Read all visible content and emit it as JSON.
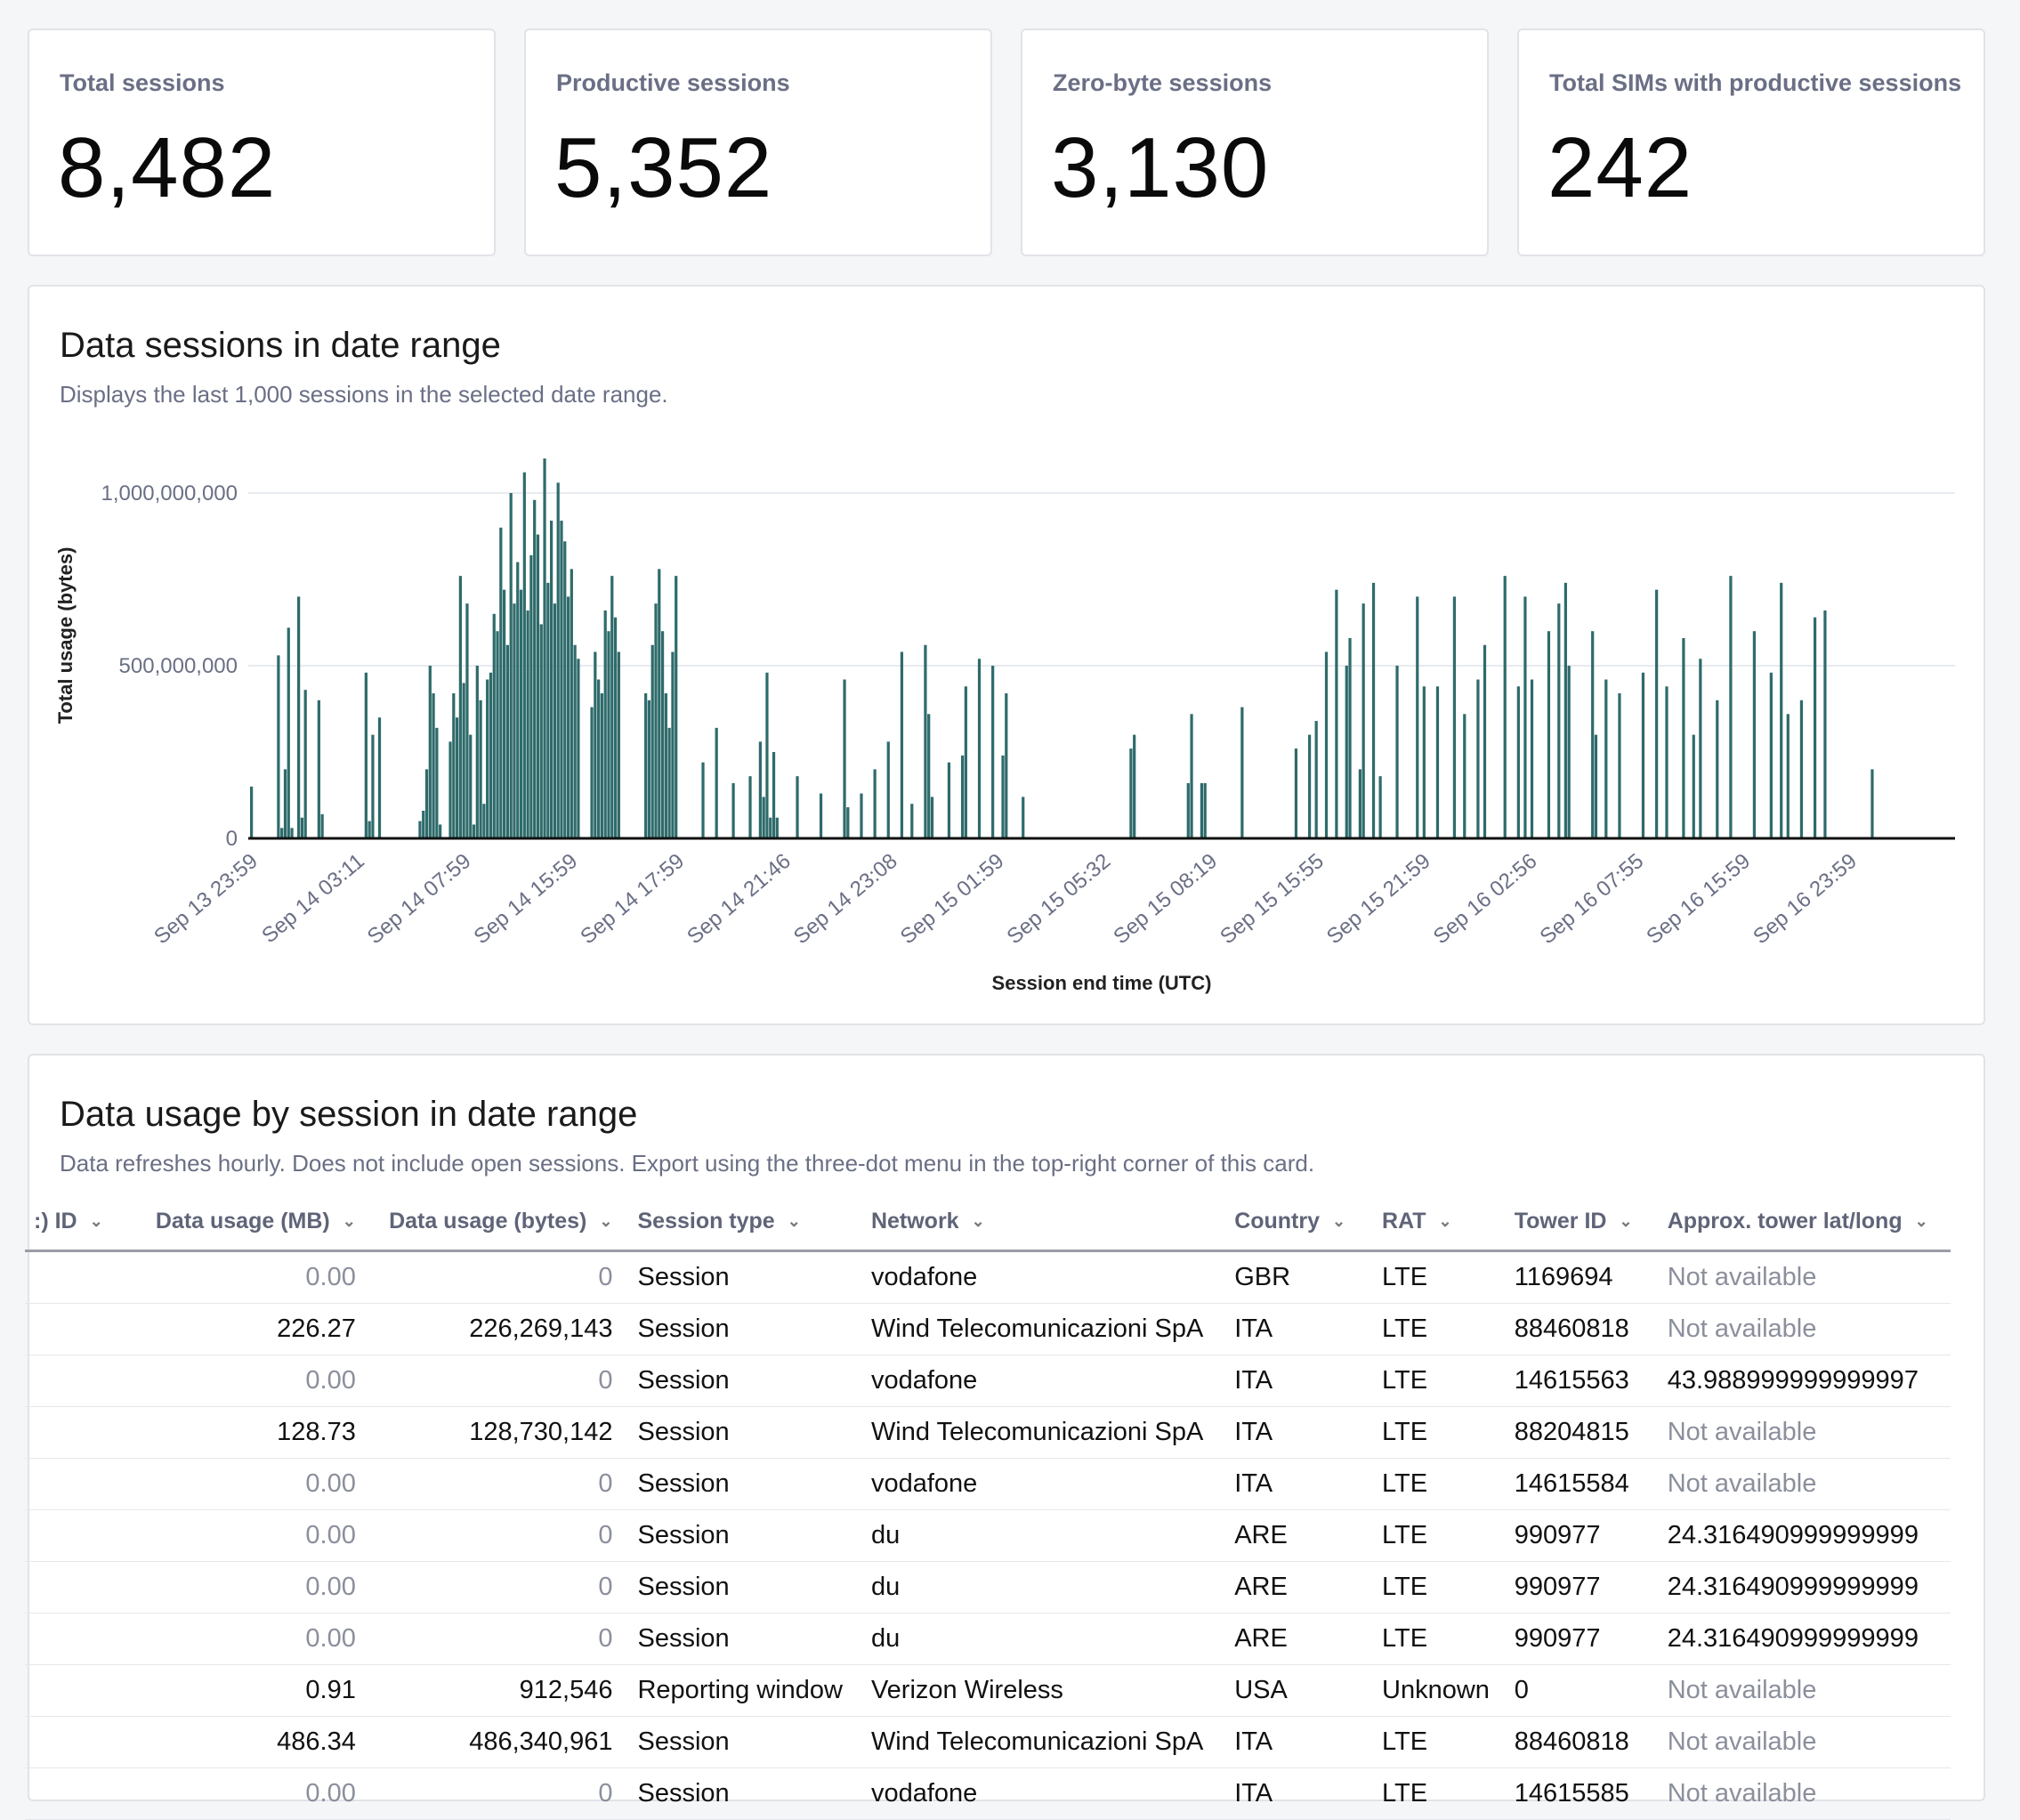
{
  "stats": [
    {
      "label": "Total sessions",
      "value": "8,482"
    },
    {
      "label": "Productive sessions",
      "value": "5,352"
    },
    {
      "label": "Zero-byte sessions",
      "value": "3,130"
    },
    {
      "label": "Total SIMs with productive sessions",
      "value": "242"
    }
  ],
  "sessions_chart": {
    "title": "Data sessions in date range",
    "subtitle": "Displays the last 1,000 sessions in the selected date range."
  },
  "chart_data": {
    "type": "bar",
    "xlabel": "Session end time (UTC)",
    "ylabel": "Total usage (bytes)",
    "ylim": [
      0,
      1170000000
    ],
    "yticks": [
      "0",
      "500,000,000",
      "1,000,000,000"
    ],
    "ytick_values": [
      0,
      500000000,
      1000000000
    ],
    "xticks": [
      "Sep 13 23:59",
      "Sep 14 03:11",
      "Sep 14 07:59",
      "Sep 14 15:59",
      "Sep 14 17:59",
      "Sep 14 21:46",
      "Sep 14 23:08",
      "Sep 15 01:59",
      "Sep 15 05:32",
      "Sep 15 08:19",
      "Sep 15 15:55",
      "Sep 15 21:59",
      "Sep 16 02:56",
      "Sep 16 07:55",
      "Sep 16 15:59",
      "Sep 16 23:59"
    ],
    "grid": true,
    "bar_color": "#2f6b6b",
    "series": [
      {
        "values": [
          150000000,
          0,
          0,
          0,
          0,
          0,
          0,
          0,
          530000000,
          30000000,
          200000000,
          610000000,
          30000000,
          0,
          700000000,
          60000000,
          430000000,
          0,
          0,
          0,
          400000000,
          70000000,
          0,
          0,
          0,
          0,
          0,
          0,
          0,
          0,
          0,
          0,
          0,
          0,
          480000000,
          50000000,
          300000000,
          0,
          350000000,
          0,
          0,
          0,
          0,
          0,
          0,
          0,
          0,
          0,
          0,
          0,
          50000000,
          80000000,
          200000000,
          500000000,
          420000000,
          320000000,
          40000000,
          0,
          0,
          280000000,
          420000000,
          350000000,
          760000000,
          450000000,
          680000000,
          300000000,
          40000000,
          500000000,
          400000000,
          100000000,
          460000000,
          480000000,
          650000000,
          600000000,
          900000000,
          720000000,
          560000000,
          1000000000,
          680000000,
          800000000,
          720000000,
          1060000000,
          660000000,
          820000000,
          980000000,
          880000000,
          620000000,
          1100000000,
          740000000,
          920000000,
          680000000,
          1030000000,
          920000000,
          860000000,
          700000000,
          780000000,
          560000000,
          520000000,
          0,
          0,
          0,
          380000000,
          540000000,
          460000000,
          420000000,
          660000000,
          600000000,
          760000000,
          640000000,
          540000000,
          0,
          0,
          0,
          0,
          0,
          0,
          0,
          420000000,
          400000000,
          560000000,
          680000000,
          780000000,
          600000000,
          420000000,
          320000000,
          540000000,
          760000000,
          0,
          0,
          0,
          0,
          0,
          0,
          0,
          220000000,
          0,
          0,
          0,
          320000000,
          0,
          0,
          0,
          0,
          160000000,
          0,
          0,
          0,
          0,
          180000000,
          0,
          0,
          280000000,
          120000000,
          480000000,
          60000000,
          250000000,
          60000000,
          0,
          0,
          0,
          0,
          0,
          180000000,
          0,
          0,
          0,
          0,
          0,
          0,
          130000000,
          0,
          0,
          0,
          0,
          0,
          0,
          460000000,
          90000000,
          0,
          0,
          0,
          130000000,
          0,
          0,
          0,
          200000000,
          0,
          0,
          0,
          280000000,
          0,
          0,
          0,
          540000000,
          0,
          0,
          100000000,
          0,
          0,
          0,
          560000000,
          360000000,
          120000000,
          0,
          0,
          0,
          0,
          220000000,
          0,
          0,
          0,
          240000000,
          440000000,
          0,
          0,
          0,
          520000000,
          0,
          0,
          0,
          500000000,
          0,
          0,
          240000000,
          420000000,
          0,
          0,
          0,
          0,
          120000000,
          0,
          0,
          0,
          0,
          0,
          0,
          0,
          0,
          0,
          0,
          0,
          0,
          0,
          0,
          0,
          0,
          0,
          0,
          0,
          0,
          0,
          0,
          0,
          0,
          0,
          0,
          0,
          0,
          0,
          0,
          0,
          260000000,
          300000000,
          0,
          0,
          0,
          0,
          0,
          0,
          0,
          0,
          0,
          0,
          0,
          0,
          0,
          0,
          0,
          160000000,
          360000000,
          0,
          0,
          160000000,
          160000000,
          0,
          0,
          0,
          0,
          0,
          0,
          0,
          0,
          0,
          0,
          380000000,
          0,
          0,
          0,
          0,
          0,
          0,
          0,
          0,
          0,
          0,
          0,
          0,
          0,
          0,
          0,
          260000000,
          0,
          0,
          0,
          300000000,
          0,
          340000000,
          0,
          0,
          540000000,
          0,
          0,
          720000000,
          0,
          0,
          500000000,
          580000000,
          0,
          0,
          200000000,
          680000000,
          0,
          0,
          740000000,
          0,
          180000000,
          0,
          0,
          0,
          0,
          500000000,
          0,
          0,
          0,
          0,
          0,
          700000000,
          0,
          440000000,
          0,
          0,
          0,
          440000000,
          0,
          0,
          0,
          0,
          700000000,
          0,
          0,
          360000000,
          0,
          0,
          0,
          460000000,
          0,
          560000000,
          0,
          0,
          0,
          0,
          0,
          760000000,
          0,
          0,
          0,
          440000000,
          0,
          700000000,
          0,
          460000000,
          0,
          0,
          0,
          0,
          600000000,
          0,
          0,
          680000000,
          0,
          740000000,
          500000000,
          0,
          0,
          0,
          0,
          0,
          0,
          600000000,
          300000000,
          0,
          0,
          460000000,
          0,
          0,
          0,
          420000000,
          0,
          0,
          0,
          0,
          0,
          0,
          480000000,
          0,
          0,
          0,
          720000000,
          0,
          0,
          440000000,
          0,
          0,
          0,
          0,
          580000000,
          0,
          0,
          300000000,
          0,
          520000000,
          0,
          0,
          0,
          0,
          400000000,
          0,
          0,
          0,
          760000000,
          0,
          0,
          0,
          0,
          0,
          0,
          600000000,
          0,
          0,
          0,
          0,
          480000000,
          0,
          0,
          740000000,
          0,
          360000000,
          0,
          0,
          0,
          400000000,
          0,
          0,
          0,
          640000000,
          0,
          0,
          660000000,
          0,
          0,
          0,
          0,
          0,
          0,
          0,
          0,
          0,
          0,
          0,
          0,
          0,
          200000000,
          0,
          0,
          0,
          0,
          0,
          0,
          0,
          0,
          0,
          0,
          0,
          0,
          0,
          0,
          0,
          0,
          0,
          0,
          0,
          0,
          0,
          0,
          0,
          0
        ]
      }
    ]
  },
  "usage_table": {
    "title": "Data usage by session in date range",
    "subtitle": "Data refreshes hourly. Does not include open sessions. Export using the three-dot menu in the top-right corner of this card.",
    "columns": [
      ":) ID",
      "Data usage (MB)",
      "Data usage (bytes)",
      "Session type",
      "Network",
      "Country",
      "RAT",
      "Tower ID",
      "Approx. tower lat/long"
    ],
    "rows": [
      [
        "",
        "0.00",
        "0",
        "Session",
        "vodafone",
        "GBR",
        "LTE",
        "1169694",
        "Not available"
      ],
      [
        "",
        "226.27",
        "226,269,143",
        "Session",
        "Wind Telecomunicazioni SpA",
        "ITA",
        "LTE",
        "88460818",
        "Not available"
      ],
      [
        "",
        "0.00",
        "0",
        "Session",
        "vodafone",
        "ITA",
        "LTE",
        "14615563",
        "43.988999999999997"
      ],
      [
        "",
        "128.73",
        "128,730,142",
        "Session",
        "Wind Telecomunicazioni SpA",
        "ITA",
        "LTE",
        "88204815",
        "Not available"
      ],
      [
        "",
        "0.00",
        "0",
        "Session",
        "vodafone",
        "ITA",
        "LTE",
        "14615584",
        "Not available"
      ],
      [
        "",
        "0.00",
        "0",
        "Session",
        "du",
        "ARE",
        "LTE",
        "990977",
        "24.316490999999999"
      ],
      [
        "",
        "0.00",
        "0",
        "Session",
        "du",
        "ARE",
        "LTE",
        "990977",
        "24.316490999999999"
      ],
      [
        "",
        "0.00",
        "0",
        "Session",
        "du",
        "ARE",
        "LTE",
        "990977",
        "24.316490999999999"
      ],
      [
        "",
        "0.91",
        "912,546",
        "Reporting window",
        "Verizon Wireless",
        "USA",
        "Unknown",
        "0",
        "Not available"
      ],
      [
        "",
        "486.34",
        "486,340,961",
        "Session",
        "Wind Telecomunicazioni SpA",
        "ITA",
        "LTE",
        "88460818",
        "Not available"
      ],
      [
        "",
        "0.00",
        "0",
        "Session",
        "vodafone",
        "ITA",
        "LTE",
        "14615585",
        "Not available"
      ]
    ]
  }
}
